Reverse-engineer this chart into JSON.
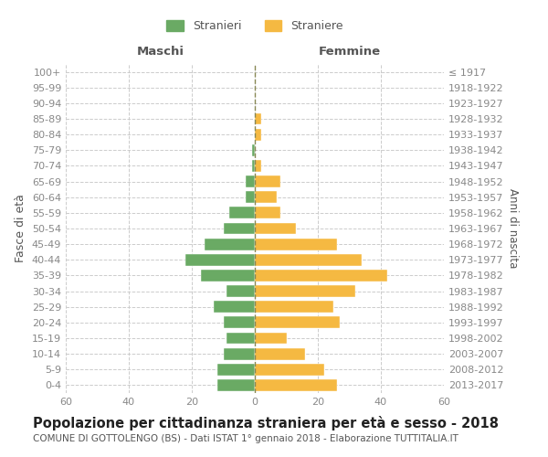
{
  "age_groups": [
    "100+",
    "95-99",
    "90-94",
    "85-89",
    "80-84",
    "75-79",
    "70-74",
    "65-69",
    "60-64",
    "55-59",
    "50-54",
    "45-49",
    "40-44",
    "35-39",
    "30-34",
    "25-29",
    "20-24",
    "15-19",
    "10-14",
    "5-9",
    "0-4"
  ],
  "birth_years": [
    "≤ 1917",
    "1918-1922",
    "1923-1927",
    "1928-1932",
    "1933-1937",
    "1938-1942",
    "1943-1947",
    "1948-1952",
    "1953-1957",
    "1958-1962",
    "1963-1967",
    "1968-1972",
    "1973-1977",
    "1978-1982",
    "1983-1987",
    "1988-1992",
    "1993-1997",
    "1998-2002",
    "2003-2007",
    "2008-2012",
    "2013-2017"
  ],
  "males": [
    0,
    0,
    0,
    0,
    0,
    1,
    1,
    3,
    3,
    8,
    10,
    16,
    22,
    17,
    9,
    13,
    10,
    9,
    10,
    12,
    12
  ],
  "females": [
    0,
    0,
    0,
    2,
    2,
    0,
    2,
    8,
    7,
    8,
    13,
    26,
    34,
    42,
    32,
    25,
    27,
    10,
    16,
    22,
    26
  ],
  "male_color": "#6aaa64",
  "female_color": "#f5b942",
  "title": "Popolazione per cittadinanza straniera per età e sesso - 2018",
  "subtitle": "COMUNE DI GOTTOLENGO (BS) - Dati ISTAT 1° gennaio 2018 - Elaborazione TUTTITALIA.IT",
  "xlabel_left": "Maschi",
  "xlabel_right": "Femmine",
  "ylabel_left": "Fasce di età",
  "ylabel_right": "Anni di nascita",
  "legend_male": "Stranieri",
  "legend_female": "Straniere",
  "xlim": 60,
  "background_color": "#ffffff",
  "grid_color": "#cccccc",
  "tick_color": "#888888",
  "label_color": "#555555",
  "title_color": "#222222",
  "subtitle_color": "#555555",
  "title_fontsize": 10.5,
  "subtitle_fontsize": 7.5,
  "tick_fontsize": 8,
  "header_fontsize": 9.5
}
